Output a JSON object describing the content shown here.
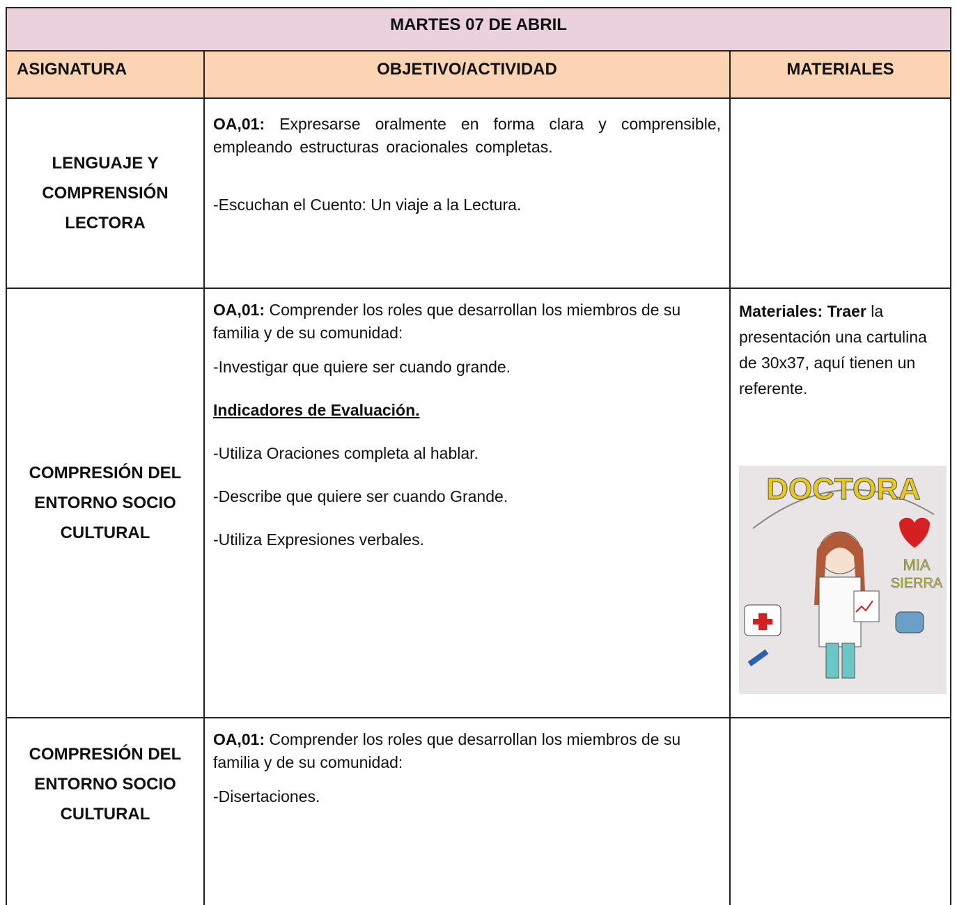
{
  "header": {
    "title": "MARTES 07 DE ABRIL"
  },
  "table": {
    "columns": [
      "ASIGNATURA",
      "OBJETIVO/ACTIVIDAD",
      "MATERIALES"
    ],
    "rows": [
      {
        "subject": "LENGUAJE Y COMPRENSIÓN LECTORA",
        "objective": {
          "code": "OA,01:",
          "text": "Expresarse oralmente en forma clara y comprensible, empleando estructuras oracionales completas."
        },
        "activities": [
          "-Escuchan el Cuento: Un viaje a la Lectura."
        ]
      },
      {
        "subject": "COMPRESIÓN DEL ENTORNO SOCIO CULTURAL",
        "objective": {
          "code": "OA,01:",
          "text": "Comprender los roles que desarrollan los miembros de su familia y de su comunidad:"
        },
        "activities": [
          "-Investigar que quiere ser cuando grande."
        ],
        "indicators": {
          "heading": "Indicadores de Evaluación.",
          "items": [
            "-Utiliza Oraciones completa al hablar.",
            "-Describe que quiere ser cuando Grande.",
            "-Utiliza Expresiones verbales."
          ]
        },
        "materials": {
          "bold": "Materiales: Traer",
          "text": "la presentación una cartulina de 30x37, aquí tienen un referente.",
          "image_texts": [
            "DOCTORA",
            "MIA",
            "SIERRA"
          ]
        }
      },
      {
        "subject": "COMPRESIÓN DEL ENTORNO SOCIO CULTURAL",
        "objective": {
          "code": "OA,01:",
          "text": "Comprender los roles que desarrollan los miembros de su familia y de su comunidad:"
        },
        "activities": [
          "-Disertaciones."
        ]
      }
    ]
  }
}
